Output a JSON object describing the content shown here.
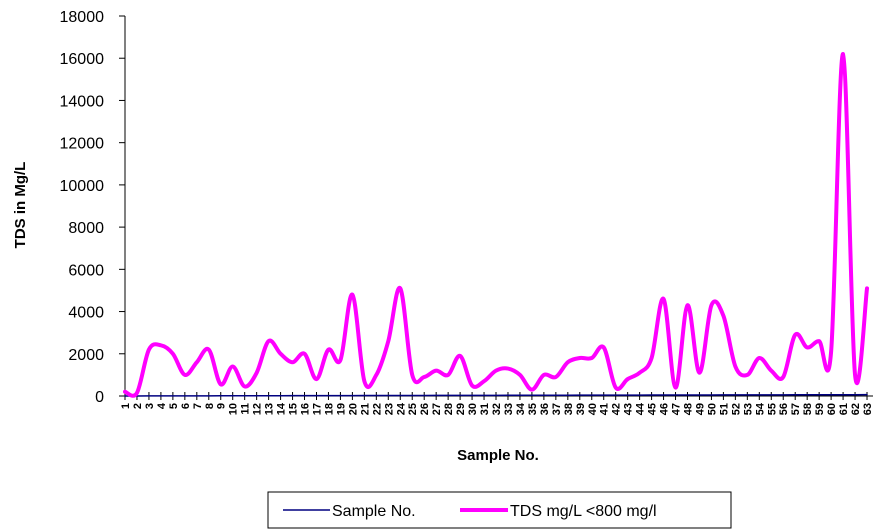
{
  "chart_data": {
    "type": "line",
    "xlabel": "Sample No.",
    "ylabel": "TDS in Mg/L",
    "ylim": [
      0,
      18000
    ],
    "yticks": [
      "0",
      "2000",
      "4000",
      "6000",
      "8000",
      "10000",
      "12000",
      "14000",
      "16000",
      "18000"
    ],
    "categories": [
      "1",
      "2",
      "3",
      "4",
      "5",
      "6",
      "7",
      "8",
      "9",
      "10",
      "11",
      "12",
      "13",
      "14",
      "15",
      "16",
      "17",
      "18",
      "19",
      "20",
      "21",
      "22",
      "23",
      "24",
      "25",
      "26",
      "27",
      "28",
      "29",
      "30",
      "31",
      "32",
      "33",
      "34",
      "35",
      "36",
      "37",
      "38",
      "39",
      "40",
      "41",
      "42",
      "43",
      "44",
      "45",
      "46",
      "47",
      "48",
      "49",
      "50",
      "51",
      "52",
      "53",
      "54",
      "55",
      "56",
      "57",
      "58",
      "59",
      "60",
      "61",
      "62",
      "63"
    ],
    "legend_position": "bottom",
    "series": [
      {
        "name": "Sample No.",
        "color": "#000080",
        "values": [
          1,
          2,
          3,
          4,
          5,
          6,
          7,
          8,
          9,
          10,
          11,
          12,
          13,
          14,
          15,
          16,
          17,
          18,
          19,
          20,
          21,
          22,
          23,
          24,
          25,
          26,
          27,
          28,
          29,
          30,
          31,
          32,
          33,
          34,
          35,
          36,
          37,
          38,
          39,
          40,
          41,
          42,
          43,
          44,
          45,
          46,
          47,
          48,
          49,
          50,
          51,
          52,
          53,
          54,
          55,
          56,
          57,
          58,
          59,
          60,
          61,
          62,
          63
        ]
      },
      {
        "name": "TDS mg/L <800 mg/l",
        "color": "#ff00ff",
        "values": [
          200,
          150,
          2200,
          2400,
          2000,
          1000,
          1600,
          2200,
          550,
          1400,
          450,
          1100,
          2600,
          2000,
          1600,
          2000,
          800,
          2200,
          1700,
          4800,
          700,
          1000,
          2600,
          5100,
          1000,
          900,
          1200,
          1000,
          1900,
          500,
          700,
          1200,
          1300,
          1000,
          300,
          1000,
          900,
          1600,
          1800,
          1800,
          2300,
          400,
          800,
          1100,
          1800,
          4600,
          400,
          4300,
          1100,
          4300,
          3800,
          1400,
          1000,
          1800,
          1200,
          900,
          2900,
          2300,
          2600,
          2100,
          16200,
          1000,
          5100
        ]
      }
    ]
  }
}
